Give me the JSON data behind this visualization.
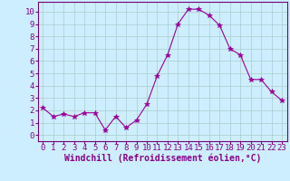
{
  "x": [
    0,
    1,
    2,
    3,
    4,
    5,
    6,
    7,
    8,
    9,
    10,
    11,
    12,
    13,
    14,
    15,
    16,
    17,
    18,
    19,
    20,
    21,
    22,
    23
  ],
  "y": [
    2.2,
    1.5,
    1.7,
    1.5,
    1.8,
    1.8,
    0.4,
    1.5,
    0.6,
    1.2,
    2.5,
    4.8,
    6.5,
    9.0,
    10.2,
    10.2,
    9.7,
    8.9,
    7.0,
    6.5,
    4.5,
    4.5,
    3.5,
    2.8
  ],
  "line_color": "#990099",
  "marker": "*",
  "marker_size": 4,
  "bg_color": "#cceeff",
  "grid_color": "#aacccc",
  "xlabel": "Windchill (Refroidissement éolien,°C)",
  "xlabel_fontsize": 7,
  "ylabel_ticks": [
    0,
    1,
    2,
    3,
    4,
    5,
    6,
    7,
    8,
    9,
    10
  ],
  "xlim": [
    -0.5,
    23.5
  ],
  "ylim": [
    -0.5,
    10.8
  ],
  "tick_fontsize": 6.5,
  "text_color": "#880088",
  "spine_color": "#770077"
}
